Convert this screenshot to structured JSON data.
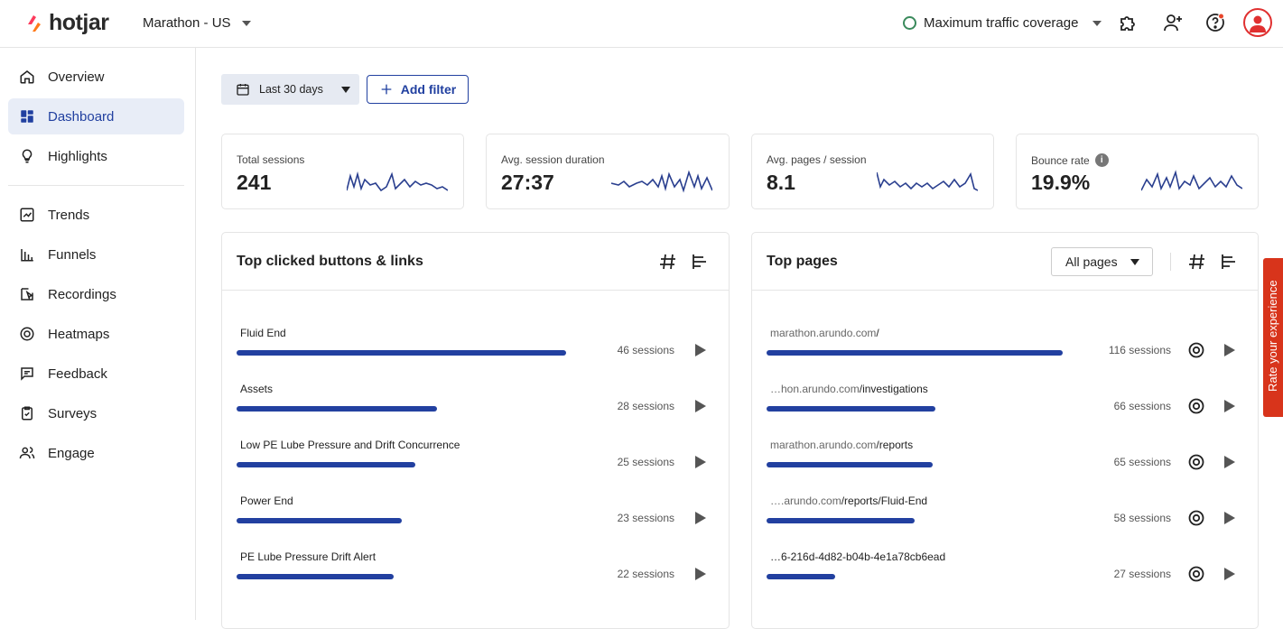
{
  "brand": {
    "name": "hotjar",
    "accent": "#fd3a5c"
  },
  "header": {
    "site": "Marathon - US",
    "traffic_label": "Maximum traffic coverage",
    "icons": [
      "integrations-icon",
      "invite-user-icon",
      "help-icon",
      "avatar"
    ]
  },
  "sidebar": {
    "items": [
      {
        "label": "Overview",
        "icon": "home-icon"
      },
      {
        "label": "Dashboard",
        "icon": "dashboard-icon",
        "active": true
      },
      {
        "label": "Highlights",
        "icon": "lightbulb-icon"
      },
      {
        "label": "Trends",
        "icon": "trends-icon"
      },
      {
        "label": "Funnels",
        "icon": "funnel-icon"
      },
      {
        "label": "Recordings",
        "icon": "recordings-icon"
      },
      {
        "label": "Heatmaps",
        "icon": "heatmap-icon"
      },
      {
        "label": "Feedback",
        "icon": "feedback-icon"
      },
      {
        "label": "Surveys",
        "icon": "survey-icon"
      },
      {
        "label": "Engage",
        "icon": "engage-icon"
      }
    ]
  },
  "toolbar": {
    "date_range": "Last 30 days",
    "add_filter": "Add filter"
  },
  "metrics": [
    {
      "label": "Total sessions",
      "value": "241"
    },
    {
      "label": "Avg. session duration",
      "value": "27:37"
    },
    {
      "label": "Avg. pages / session",
      "value": "8.1"
    },
    {
      "label": "Bounce rate",
      "value": "19.9%"
    }
  ],
  "clicked": {
    "title": "Top clicked buttons & links",
    "rows": [
      {
        "label": "Fluid End",
        "count": "46 sessions",
        "ratio": 1.0
      },
      {
        "label": "Assets",
        "count": "28 sessions",
        "ratio": 0.609
      },
      {
        "label": "Low PE Lube Pressure and Drift Concurrence",
        "count": "25 sessions",
        "ratio": 0.543
      },
      {
        "label": "Power End",
        "count": "23 sessions",
        "ratio": 0.5
      },
      {
        "label": "PE Lube Pressure Drift Alert",
        "count": "22 sessions",
        "ratio": 0.478
      }
    ]
  },
  "pages": {
    "title": "Top pages",
    "filter": "All pages",
    "rows": [
      {
        "prefix": "marathon.arundo.com",
        "path": "/",
        "count": "116 sessions",
        "ratio": 1.0
      },
      {
        "prefix": "…hon.arundo.com",
        "path": "/investigations",
        "count": "66 sessions",
        "ratio": 0.569
      },
      {
        "prefix": "marathon.arundo.com",
        "path": "/reports",
        "count": "65 sessions",
        "ratio": 0.56
      },
      {
        "prefix": "….arundo.com",
        "path": "/reports/Fluid-End",
        "count": "58 sessions",
        "ratio": 0.5
      },
      {
        "prefix": "",
        "path": "…6-216d-4d82-b04b-4e1a78cb6ead",
        "count": "27 sessions",
        "ratio": 0.233
      }
    ]
  },
  "rate_tab": "Rate your experience"
}
